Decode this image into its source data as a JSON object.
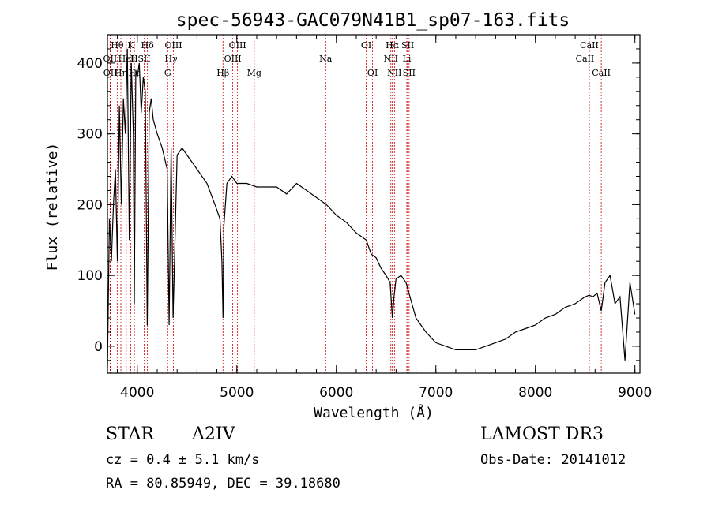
{
  "chart_data": {
    "type": "line",
    "title": "spec-56943-GAC079N41B1_sp07-163.fits",
    "xlabel": "Wavelength (Å)",
    "ylabel": "Flux (relative)",
    "xlim": [
      3700,
      9050
    ],
    "ylim": [
      -38,
      440
    ],
    "x_ticks": [
      4000,
      5000,
      6000,
      7000,
      8000,
      9000
    ],
    "x_tick_labels": [
      "4000",
      "5000",
      "6000",
      "7000",
      "8000",
      "9000"
    ],
    "y_ticks": [
      0,
      100,
      200,
      300,
      400
    ],
    "y_tick_labels": [
      "0",
      "100",
      "200",
      "300",
      "400"
    ],
    "series": [
      {
        "name": "spectrum",
        "x": [
          3700,
          3720,
          3740,
          3760,
          3780,
          3800,
          3820,
          3840,
          3860,
          3880,
          3900,
          3920,
          3940,
          3960,
          3970,
          3985,
          4000,
          4020,
          4040,
          4060,
          4080,
          4100,
          4120,
          4140,
          4160,
          4200,
          4250,
          4300,
          4320,
          4340,
          4360,
          4400,
          4450,
          4500,
          4600,
          4700,
          4780,
          4830,
          4850,
          4861,
          4870,
          4900,
          4950,
          5000,
          5100,
          5200,
          5300,
          5400,
          5500,
          5600,
          5700,
          5800,
          5900,
          6000,
          6100,
          6200,
          6300,
          6350,
          6400,
          6450,
          6500,
          6540,
          6563,
          6580,
          6600,
          6650,
          6700,
          6750,
          6800,
          6900,
          7000,
          7100,
          7200,
          7300,
          7400,
          7500,
          7600,
          7700,
          7800,
          7900,
          8000,
          8100,
          8200,
          8300,
          8400,
          8500,
          8540,
          8580,
          8620,
          8662,
          8700,
          8750,
          8800,
          8850,
          8900,
          8950,
          9000
        ],
        "values": [
          -30,
          180,
          120,
          200,
          250,
          120,
          340,
          200,
          350,
          300,
          420,
          150,
          400,
          300,
          60,
          390,
          380,
          400,
          330,
          380,
          360,
          30,
          330,
          350,
          320,
          300,
          280,
          250,
          30,
          280,
          40,
          270,
          280,
          270,
          250,
          230,
          200,
          180,
          120,
          40,
          170,
          230,
          240,
          230,
          230,
          225,
          225,
          225,
          215,
          230,
          220,
          210,
          200,
          185,
          175,
          160,
          150,
          130,
          125,
          110,
          100,
          90,
          40,
          70,
          95,
          100,
          90,
          65,
          40,
          20,
          5,
          0,
          -5,
          -5,
          -5,
          0,
          5,
          10,
          20,
          25,
          30,
          40,
          45,
          55,
          60,
          70,
          72,
          70,
          75,
          50,
          90,
          100,
          60,
          70,
          -20,
          90,
          45
        ]
      }
    ],
    "line_labels": [
      {
        "label": "Hθ",
        "wavelength": 3798,
        "row": 1
      },
      {
        "label": "OII",
        "wavelength": 3727,
        "row": 2
      },
      {
        "label": "OII",
        "wavelength": 3729,
        "row": 3
      },
      {
        "label": "Hη",
        "wavelength": 3835,
        "row": 3
      },
      {
        "label": "HeI",
        "wavelength": 3889,
        "row": 2
      },
      {
        "label": "Hε",
        "wavelength": 3970,
        "row": 3
      },
      {
        "label": "K",
        "wavelength": 3934,
        "row": 1
      },
      {
        "label": "H",
        "wavelength": 3968,
        "row": 2
      },
      {
        "label": "SII",
        "wavelength": 4070,
        "row": 2
      },
      {
        "label": "Hδ",
        "wavelength": 4102,
        "row": 1
      },
      {
        "label": "OIII",
        "wavelength": 4363,
        "row": 1
      },
      {
        "label": "Hγ",
        "wavelength": 4340,
        "row": 2
      },
      {
        "label": "G",
        "wavelength": 4305,
        "row": 3
      },
      {
        "label": "Hβ",
        "wavelength": 4861,
        "row": 3
      },
      {
        "label": "OIII",
        "wavelength": 5007,
        "row": 1
      },
      {
        "label": "OIII",
        "wavelength": 4959,
        "row": 2
      },
      {
        "label": "Mg",
        "wavelength": 5175,
        "row": 3
      },
      {
        "label": "Na",
        "wavelength": 5893,
        "row": 2
      },
      {
        "label": "OI",
        "wavelength": 6300,
        "row": 1
      },
      {
        "label": "OI",
        "wavelength": 6364,
        "row": 3
      },
      {
        "label": "Hα",
        "wavelength": 6563,
        "row": 1
      },
      {
        "label": "NII",
        "wavelength": 6548,
        "row": 2
      },
      {
        "label": "NII",
        "wavelength": 6584,
        "row": 3
      },
      {
        "label": "SII",
        "wavelength": 6717,
        "row": 1
      },
      {
        "label": "Li",
        "wavelength": 6708,
        "row": 2
      },
      {
        "label": "SII",
        "wavelength": 6731,
        "row": 3
      },
      {
        "label": "CaII",
        "wavelength": 8542,
        "row": 1
      },
      {
        "label": "CaII",
        "wavelength": 8498,
        "row": 2
      },
      {
        "label": "CaII",
        "wavelength": 8662,
        "row": 3
      }
    ],
    "line_marker_color": "#cc0000"
  },
  "info": {
    "class": "STAR",
    "subclass": "A2IV",
    "survey": "LAMOST DR3",
    "cz": "cz = 0.4 ± 5.1 km/s",
    "obs_date": "Obs-Date: 20141012",
    "coords": "RA =  80.85949, DEC =  39.18680"
  }
}
